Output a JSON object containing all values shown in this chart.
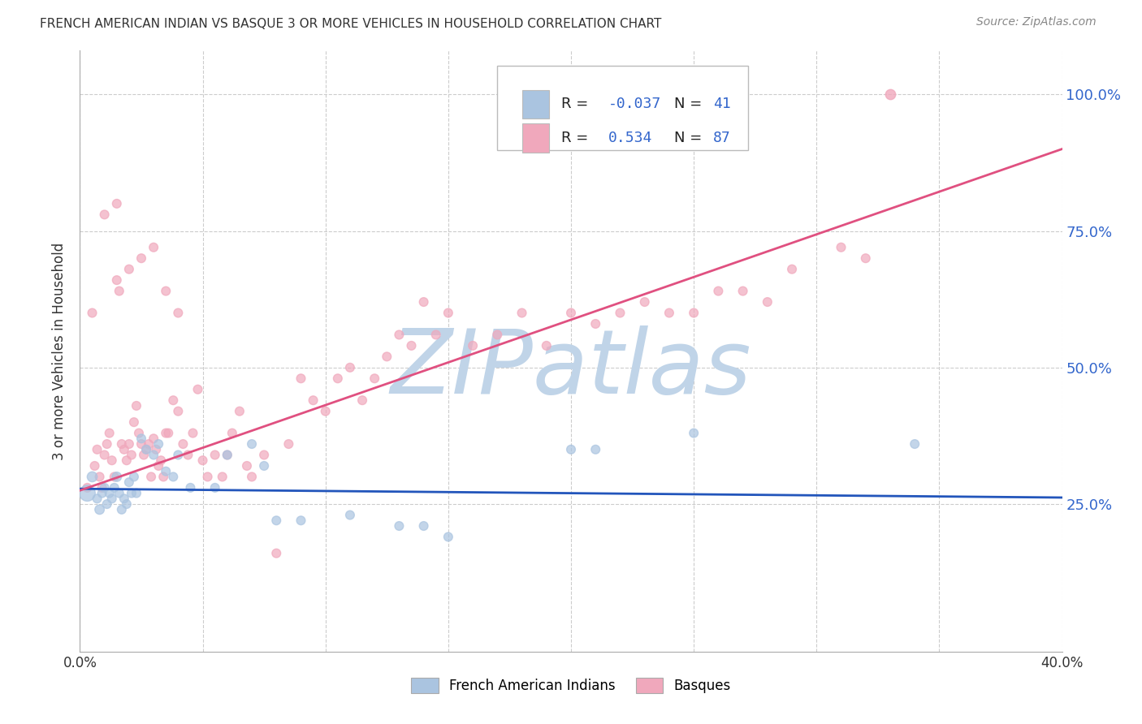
{
  "title": "FRENCH AMERICAN INDIAN VS BASQUE 3 OR MORE VEHICLES IN HOUSEHOLD CORRELATION CHART",
  "source": "Source: ZipAtlas.com",
  "ylabel": "3 or more Vehicles in Household",
  "xlim": [
    0.0,
    0.4
  ],
  "ylim": [
    -0.02,
    1.08
  ],
  "plot_ylim": [
    0.0,
    1.05
  ],
  "yticks": [
    0.25,
    0.5,
    0.75,
    1.0
  ],
  "ytick_labels": [
    "25.0%",
    "50.0%",
    "75.0%",
    "100.0%"
  ],
  "xticks": [
    0.0,
    0.05,
    0.1,
    0.15,
    0.2,
    0.25,
    0.3,
    0.35,
    0.4
  ],
  "xtick_labels": [
    "0.0%",
    "",
    "",
    "",
    "",
    "",
    "",
    "",
    "40.0%"
  ],
  "background_color": "#ffffff",
  "grid_color": "#cccccc",
  "watermark_text": "ZIPatlas",
  "watermark_color": "#c0d4e8",
  "legend_r_color": "#3366cc",
  "blue_color": "#aac4e0",
  "pink_color": "#f0a8bc",
  "blue_line_color": "#2255bb",
  "pink_line_color": "#e05080",
  "R_blue": -0.037,
  "N_blue": 41,
  "R_pink": 0.534,
  "N_pink": 87,
  "blue_scatter_x": [
    0.003,
    0.005,
    0.007,
    0.008,
    0.009,
    0.01,
    0.011,
    0.012,
    0.013,
    0.014,
    0.015,
    0.016,
    0.017,
    0.018,
    0.019,
    0.02,
    0.021,
    0.022,
    0.023,
    0.025,
    0.027,
    0.03,
    0.032,
    0.035,
    0.038,
    0.04,
    0.045,
    0.055,
    0.06,
    0.07,
    0.075,
    0.08,
    0.09,
    0.11,
    0.13,
    0.14,
    0.15,
    0.2,
    0.21,
    0.25,
    0.34
  ],
  "blue_scatter_y": [
    0.27,
    0.3,
    0.26,
    0.24,
    0.27,
    0.28,
    0.25,
    0.27,
    0.26,
    0.28,
    0.3,
    0.27,
    0.24,
    0.26,
    0.25,
    0.29,
    0.27,
    0.3,
    0.27,
    0.37,
    0.35,
    0.34,
    0.36,
    0.31,
    0.3,
    0.34,
    0.28,
    0.28,
    0.34,
    0.36,
    0.32,
    0.22,
    0.22,
    0.23,
    0.21,
    0.21,
    0.19,
    0.35,
    0.35,
    0.38,
    0.36
  ],
  "blue_scatter_s": [
    200,
    80,
    60,
    70,
    60,
    60,
    60,
    60,
    60,
    60,
    70,
    60,
    60,
    60,
    60,
    60,
    60,
    60,
    60,
    60,
    60,
    60,
    60,
    60,
    60,
    60,
    60,
    60,
    60,
    60,
    60,
    60,
    60,
    60,
    60,
    60,
    60,
    60,
    60,
    60,
    60
  ],
  "pink_scatter_x": [
    0.003,
    0.005,
    0.006,
    0.007,
    0.008,
    0.009,
    0.01,
    0.011,
    0.012,
    0.013,
    0.014,
    0.015,
    0.016,
    0.017,
    0.018,
    0.019,
    0.02,
    0.021,
    0.022,
    0.023,
    0.024,
    0.025,
    0.026,
    0.027,
    0.028,
    0.029,
    0.03,
    0.031,
    0.032,
    0.033,
    0.034,
    0.035,
    0.036,
    0.038,
    0.04,
    0.042,
    0.044,
    0.046,
    0.048,
    0.05,
    0.052,
    0.055,
    0.058,
    0.06,
    0.062,
    0.065,
    0.068,
    0.07,
    0.075,
    0.08,
    0.085,
    0.09,
    0.095,
    0.1,
    0.105,
    0.11,
    0.115,
    0.12,
    0.125,
    0.13,
    0.135,
    0.14,
    0.145,
    0.15,
    0.16,
    0.17,
    0.18,
    0.19,
    0.2,
    0.21,
    0.22,
    0.23,
    0.24,
    0.25,
    0.26,
    0.27,
    0.28,
    0.29,
    0.31,
    0.32,
    0.01,
    0.015,
    0.02,
    0.025,
    0.03,
    0.035,
    0.04
  ],
  "pink_scatter_y": [
    0.28,
    0.6,
    0.32,
    0.35,
    0.3,
    0.28,
    0.34,
    0.36,
    0.38,
    0.33,
    0.3,
    0.66,
    0.64,
    0.36,
    0.35,
    0.33,
    0.36,
    0.34,
    0.4,
    0.43,
    0.38,
    0.36,
    0.34,
    0.35,
    0.36,
    0.3,
    0.37,
    0.35,
    0.32,
    0.33,
    0.3,
    0.38,
    0.38,
    0.44,
    0.42,
    0.36,
    0.34,
    0.38,
    0.46,
    0.33,
    0.3,
    0.34,
    0.3,
    0.34,
    0.38,
    0.42,
    0.32,
    0.3,
    0.34,
    0.16,
    0.36,
    0.48,
    0.44,
    0.42,
    0.48,
    0.5,
    0.44,
    0.48,
    0.52,
    0.56,
    0.54,
    0.62,
    0.56,
    0.6,
    0.54,
    0.56,
    0.6,
    0.54,
    0.6,
    0.58,
    0.6,
    0.62,
    0.6,
    0.6,
    0.64,
    0.64,
    0.62,
    0.68,
    0.72,
    0.7,
    0.78,
    0.8,
    0.68,
    0.7,
    0.72,
    0.64,
    0.6
  ],
  "pink_scatter_s": [
    60,
    60,
    60,
    60,
    60,
    60,
    60,
    60,
    60,
    60,
    60,
    60,
    60,
    60,
    60,
    60,
    60,
    60,
    60,
    60,
    60,
    60,
    60,
    60,
    60,
    60,
    60,
    60,
    60,
    60,
    60,
    60,
    60,
    60,
    60,
    60,
    60,
    60,
    60,
    60,
    60,
    60,
    60,
    60,
    60,
    60,
    60,
    60,
    60,
    60,
    60,
    60,
    60,
    60,
    60,
    60,
    60,
    60,
    60,
    60,
    60,
    60,
    60,
    60,
    60,
    60,
    60,
    60,
    60,
    60,
    60,
    60,
    60,
    60,
    60,
    60,
    60,
    60,
    60,
    60,
    60,
    60,
    60,
    60,
    60,
    60,
    60
  ],
  "pink_special_x": [
    0.33
  ],
  "pink_special_y": [
    1.0
  ],
  "blue_trendline_x": [
    0.0,
    0.4
  ],
  "blue_trendline_y": [
    0.278,
    0.262
  ],
  "pink_trendline_x": [
    0.0,
    0.4
  ],
  "pink_trendline_y": [
    0.275,
    0.9
  ]
}
